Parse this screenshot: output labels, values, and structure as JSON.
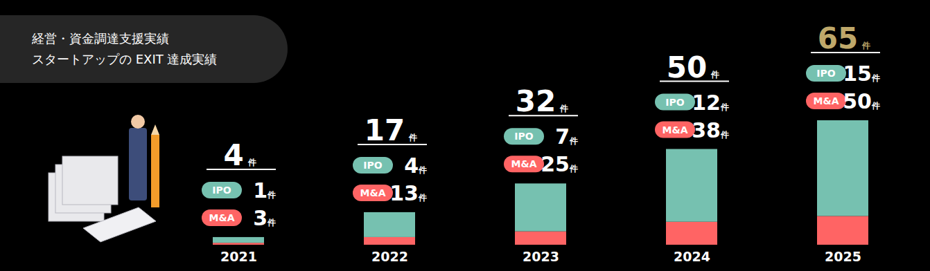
{
  "chart_data": {
    "type": "bar",
    "title": "経営・資金調達支援実績",
    "subtitle": "スタートアップの EXIT 達成実績",
    "categories": [
      "2021",
      "2022",
      "2023",
      "2024",
      "2025"
    ],
    "series": [
      {
        "name": "IPO",
        "color": "#ff6464",
        "values": [
          1,
          4,
          7,
          12,
          15
        ]
      },
      {
        "name": "M&A",
        "color": "#76c1b0",
        "values": [
          3,
          13,
          25,
          38,
          50
        ]
      }
    ],
    "totals": [
      4,
      17,
      32,
      50,
      65
    ],
    "unit": "件",
    "ylim": [
      0,
      70
    ],
    "stacked": true,
    "data_labels": true,
    "tick_labels": "x",
    "grid": false
  }
}
